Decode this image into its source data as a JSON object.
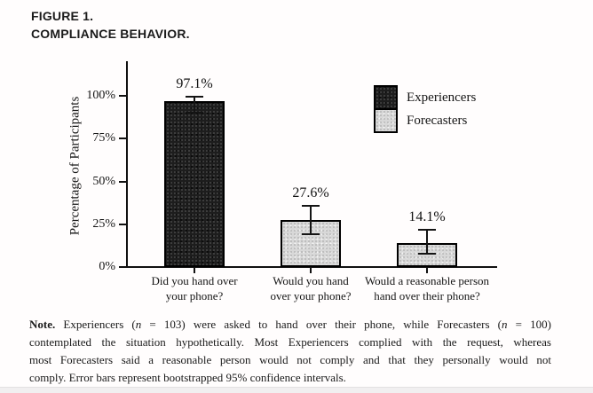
{
  "header": {
    "figure_label": "FIGURE 1.",
    "figure_title": "COMPLIANCE BEHAVIOR."
  },
  "chart_data": {
    "type": "bar",
    "title": "",
    "xlabel": "",
    "ylabel": "Percentage of Participants",
    "ylim": [
      0,
      100
    ],
    "ytick_values": [
      0,
      25,
      50,
      75,
      100
    ],
    "ytick_labels": [
      "0%",
      "25%",
      "50%",
      "75%",
      "100%"
    ],
    "grid": false,
    "legend_position": "top-right",
    "legend": [
      {
        "label": "Experiencers",
        "fill": "#1d1d1d"
      },
      {
        "label": "Forecasters",
        "fill": "#d8d8d8"
      }
    ],
    "bars": [
      {
        "category_lines": [
          "Did you hand over",
          "your phone?"
        ],
        "series": "Experiencers",
        "value": 97.1,
        "label": "97.1%",
        "ci_low": 90.0,
        "ci_high": 99.7
      },
      {
        "category_lines": [
          "Would you hand",
          "over your phone?"
        ],
        "series": "Forecasters",
        "value": 27.6,
        "label": "27.6%",
        "ci_low": 19.0,
        "ci_high": 36.0
      },
      {
        "category_lines": [
          "Would a reasonable person",
          "hand over their phone?"
        ],
        "series": "Forecasters",
        "value": 14.1,
        "label": "14.1%",
        "ci_low": 7.7,
        "ci_high": 21.6
      }
    ]
  },
  "note": {
    "lines": [
      {
        "segments": [
          {
            "text": "Note.",
            "style": "bold"
          },
          {
            "text": " Experiencers (",
            "style": ""
          },
          {
            "text": "n",
            "style": "italic"
          },
          {
            "text": " = 103) were asked to hand over their phone, while Forecasters (",
            "style": ""
          },
          {
            "text": "n",
            "style": "italic"
          },
          {
            "text": " = 100)",
            "style": ""
          }
        ]
      },
      {
        "segments": [
          {
            "text": "contemplated the situation hypothetically. Most Experiencers complied with the request, whereas",
            "style": ""
          }
        ]
      },
      {
        "segments": [
          {
            "text": "most Forecasters said a reasonable person would not comply and that they personally would not",
            "style": ""
          }
        ]
      },
      {
        "segments": [
          {
            "text": "comply. Error bars represent bootstrapped 95% confidence intervals.",
            "style": ""
          }
        ]
      }
    ]
  }
}
